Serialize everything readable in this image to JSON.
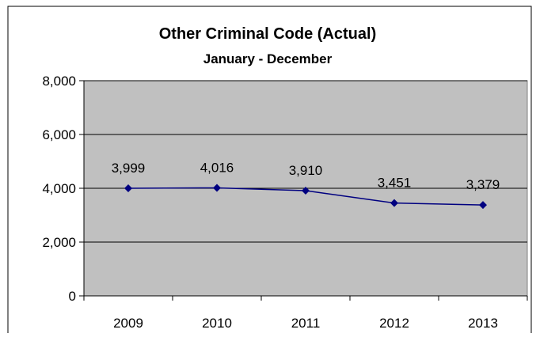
{
  "chart_data": {
    "type": "line",
    "title": "Other Criminal Code (Actual)",
    "subtitle": "January - December",
    "xlabel": "",
    "ylabel": "",
    "categories": [
      "2009",
      "2010",
      "2011",
      "2012",
      "2013"
    ],
    "series": [
      {
        "values": [
          3999,
          4016,
          3910,
          3451,
          3379
        ],
        "labels": [
          "3,999",
          "4,016",
          "3,910",
          "3,451",
          "3,379"
        ],
        "color": "#000080"
      }
    ],
    "ylim": [
      0,
      8000
    ],
    "yticks": [
      0,
      2000,
      4000,
      6000,
      8000
    ],
    "ytick_labels": [
      "0",
      "2,000",
      "4,000",
      "6,000",
      "8,000"
    ],
    "grid": true,
    "legend": "none",
    "plot_background": "#c0c0c0"
  }
}
